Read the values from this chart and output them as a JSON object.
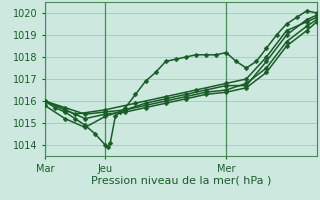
{
  "title": "",
  "xlabel": "Pression niveau de la mer( hPa )",
  "ylabel": "",
  "ylim": [
    1013.5,
    1020.5
  ],
  "xlim": [
    0,
    54
  ],
  "yticks": [
    1014,
    1015,
    1016,
    1017,
    1018,
    1019,
    1020
  ],
  "xtick_positions": [
    0,
    12,
    36
  ],
  "xtick_labels": [
    "Mar",
    "Jeu",
    "Mer"
  ],
  "bg_color": "#cce8df",
  "grid_color": "#a8cfbf",
  "line_color": "#1a5c28",
  "marker": "D",
  "markersize": 2.5,
  "linewidth": 1.1,
  "lines": [
    [
      0,
      1016.0,
      2,
      1015.7,
      4,
      1015.5,
      6,
      1015.2,
      8,
      1014.9,
      10,
      1014.5,
      12,
      1014.0,
      12.5,
      1013.9,
      13,
      1014.1,
      14,
      1015.3,
      15,
      1015.5,
      16,
      1015.7,
      18,
      1016.3,
      20,
      1016.9,
      22,
      1017.3,
      24,
      1017.8,
      26,
      1017.9,
      28,
      1018.0,
      30,
      1018.1,
      32,
      1018.1,
      34,
      1018.1,
      36,
      1018.2,
      38,
      1017.8,
      40,
      1017.5,
      42,
      1017.8,
      44,
      1018.4,
      46,
      1019.0,
      48,
      1019.5,
      50,
      1019.8,
      52,
      1020.1,
      54,
      1020.0
    ],
    [
      0,
      1015.8,
      4,
      1015.2,
      8,
      1014.8,
      12,
      1015.3,
      16,
      1015.6,
      20,
      1015.9,
      24,
      1016.1,
      28,
      1016.3,
      32,
      1016.5,
      36,
      1016.7,
      40,
      1016.7,
      44,
      1017.8,
      48,
      1019.0,
      52,
      1019.7,
      54,
      1019.9
    ],
    [
      0,
      1016.0,
      4,
      1015.7,
      8,
      1015.4,
      12,
      1015.5,
      16,
      1015.6,
      20,
      1015.8,
      24,
      1016.0,
      28,
      1016.2,
      32,
      1016.4,
      36,
      1016.5,
      40,
      1016.8,
      44,
      1017.5,
      48,
      1018.7,
      52,
      1019.4,
      54,
      1019.7
    ],
    [
      0,
      1016.0,
      4,
      1015.6,
      8,
      1015.2,
      12,
      1015.4,
      16,
      1015.5,
      20,
      1015.7,
      24,
      1015.9,
      28,
      1016.1,
      32,
      1016.3,
      36,
      1016.4,
      40,
      1016.6,
      44,
      1017.3,
      48,
      1018.5,
      52,
      1019.2,
      54,
      1019.6
    ],
    [
      0,
      1016.0,
      6,
      1015.4,
      12,
      1015.6,
      18,
      1015.9,
      24,
      1016.2,
      30,
      1016.5,
      36,
      1016.8,
      40,
      1017.0,
      44,
      1018.0,
      48,
      1019.2,
      52,
      1019.6,
      54,
      1019.8
    ]
  ]
}
